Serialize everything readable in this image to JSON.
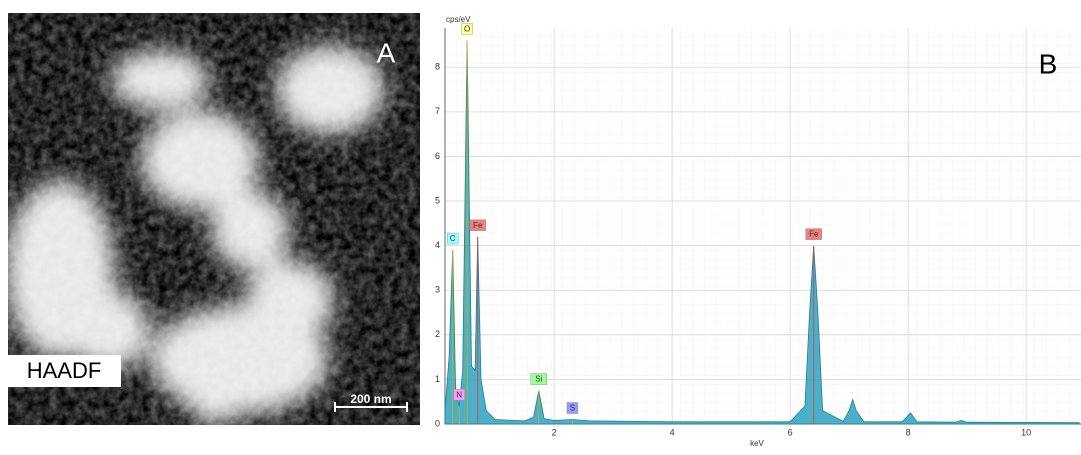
{
  "image_panel": {
    "panel_label": "A",
    "mode_label": "HAADF",
    "scale_bar": "200 nm"
  },
  "chart_data": {
    "type": "area",
    "panel_label": "B",
    "y_label": "cps/eV",
    "x_label": "keV",
    "x": [
      0.15,
      0.22,
      0.28,
      0.33,
      0.39,
      0.45,
      0.525,
      0.6,
      0.66,
      0.705,
      0.76,
      0.85,
      1.0,
      1.5,
      1.65,
      1.74,
      1.83,
      2.0,
      2.31,
      2.6,
      4.0,
      6.0,
      6.25,
      6.33,
      6.4,
      6.47,
      6.55,
      6.9,
      7.0,
      7.06,
      7.12,
      7.25,
      7.9,
      8.04,
      8.15,
      8.8,
      8.9,
      9.0,
      10.9
    ],
    "values": [
      0.3,
      1.5,
      3.9,
      0.8,
      0.4,
      1.2,
      8.6,
      1.3,
      1.2,
      4.2,
      1.0,
      0.3,
      0.1,
      0.07,
      0.15,
      0.75,
      0.12,
      0.08,
      0.1,
      0.07,
      0.05,
      0.05,
      0.4,
      2.5,
      4.0,
      2.5,
      0.3,
      0.06,
      0.3,
      0.55,
      0.3,
      0.05,
      0.05,
      0.25,
      0.05,
      0.04,
      0.08,
      0.04,
      0.03
    ],
    "color": "#3aa6c2",
    "peak_labels": [
      {
        "label": "O",
        "x": 0.525,
        "y": 8.6,
        "color": "#ffff99"
      },
      {
        "label": "Fe",
        "x": 0.705,
        "y": 4.2,
        "color": "#f08080"
      },
      {
        "label": "C",
        "x": 0.28,
        "y": 3.9,
        "color": "#99ffff"
      },
      {
        "label": "N",
        "x": 0.39,
        "y": 0.4,
        "color": "#ff99ff"
      },
      {
        "label": "Si",
        "x": 1.74,
        "y": 0.75,
        "color": "#99ff99"
      },
      {
        "label": "S",
        "x": 2.31,
        "y": 0.1,
        "color": "#9999ff"
      },
      {
        "label": "Fe",
        "x": 6.4,
        "y": 4.0,
        "color": "#f08080"
      }
    ],
    "xlim": [
      0.15,
      10.93
    ],
    "ylim": [
      0,
      8.88
    ],
    "xticks": [
      2,
      4,
      6,
      8,
      10
    ],
    "yticks": [
      0,
      1,
      2,
      3,
      4,
      5,
      6,
      7,
      8
    ],
    "grid": true
  }
}
